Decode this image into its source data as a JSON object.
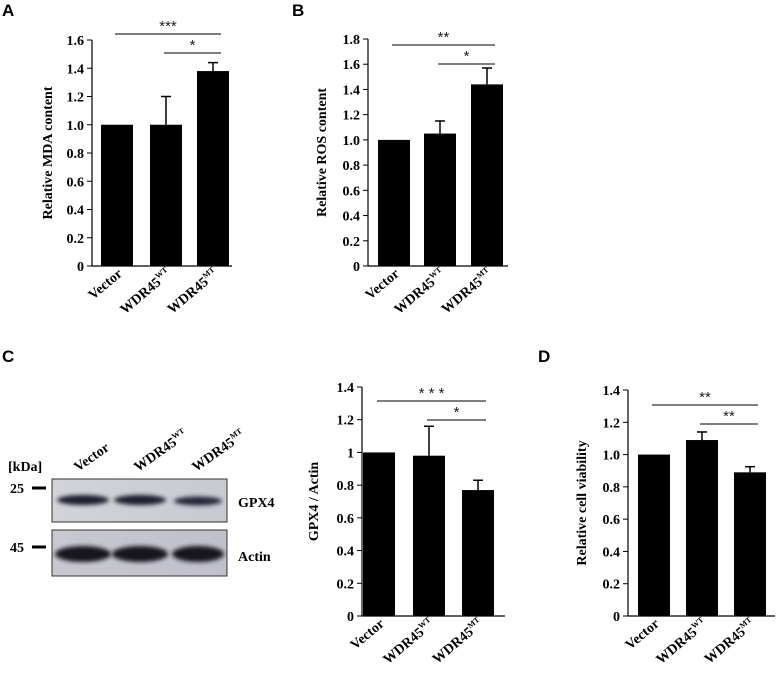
{
  "chart_data": [
    {
      "panel": "A",
      "type": "bar",
      "categories": [
        "Vector",
        "WDR45WT",
        "WDR45MT"
      ],
      "values": [
        1.0,
        1.0,
        1.38
      ],
      "errors": [
        0,
        0.2,
        0.06
      ],
      "ylabel": "Relative MDA content",
      "ylim": [
        0,
        1.6
      ],
      "yticks": [
        "0",
        "0.2",
        "0.4",
        "0.6",
        "0.8",
        "1.0",
        "1.2",
        "1.4",
        "1.6"
      ],
      "significance": [
        {
          "from": 0,
          "to": 2,
          "label": "***"
        },
        {
          "from": 1,
          "to": 2,
          "label": "*"
        }
      ],
      "bar_color": "#000000"
    },
    {
      "panel": "B",
      "type": "bar",
      "categories": [
        "Vector",
        "WDR45WT",
        "WDR45MT"
      ],
      "values": [
        1.0,
        1.05,
        1.44
      ],
      "errors": [
        0,
        0.1,
        0.13
      ],
      "ylabel": "Relative ROS content",
      "ylim": [
        0,
        1.8
      ],
      "yticks": [
        "0",
        "0.2",
        "0.4",
        "0.6",
        "0.8",
        "1.0",
        "1.2",
        "1.4",
        "1.6",
        "1.8"
      ],
      "significance": [
        {
          "from": 0,
          "to": 2,
          "label": "**"
        },
        {
          "from": 1,
          "to": 2,
          "label": "*"
        }
      ],
      "bar_color": "#000000"
    },
    {
      "panel": "C",
      "type": "bar",
      "categories": [
        "Vector",
        "WDR45WT",
        "WDR45MT"
      ],
      "values": [
        1.0,
        0.98,
        0.77
      ],
      "errors": [
        0,
        0.18,
        0.06
      ],
      "ylabel": "GPX4 / Actin",
      "ylim": [
        0,
        1.4
      ],
      "yticks": [
        "0",
        "0.2",
        "0.4",
        "0.6",
        "0.8",
        "1",
        "1.2",
        "1.4"
      ],
      "significance": [
        {
          "from": 0,
          "to": 2,
          "label": "* * *"
        },
        {
          "from": 1,
          "to": 2,
          "label": "*"
        }
      ],
      "bar_color": "#000000"
    },
    {
      "panel": "D",
      "type": "bar",
      "categories": [
        "Vector",
        "WDR45WT",
        "WDR45MT"
      ],
      "values": [
        1.0,
        1.09,
        0.89
      ],
      "errors": [
        0,
        0.05,
        0.035
      ],
      "ylabel": "Relative cell viability",
      "ylim": [
        0,
        1.4
      ],
      "yticks": [
        "0",
        "0.2",
        "0.4",
        "0.6",
        "0.8",
        "1.0",
        "1.2",
        "1.4"
      ],
      "significance": [
        {
          "from": 0,
          "to": 2,
          "label": "**"
        },
        {
          "from": 1,
          "to": 2,
          "label": "**"
        }
      ],
      "bar_color": "#000000"
    }
  ],
  "blot": {
    "unit_label": "[kDa]",
    "lanes": [
      "Vector",
      "WDR45WT",
      "WDR45MT"
    ],
    "rows": [
      {
        "marker": "25",
        "protein": "GPX4"
      },
      {
        "marker": "45",
        "protein": "Actin"
      }
    ]
  }
}
